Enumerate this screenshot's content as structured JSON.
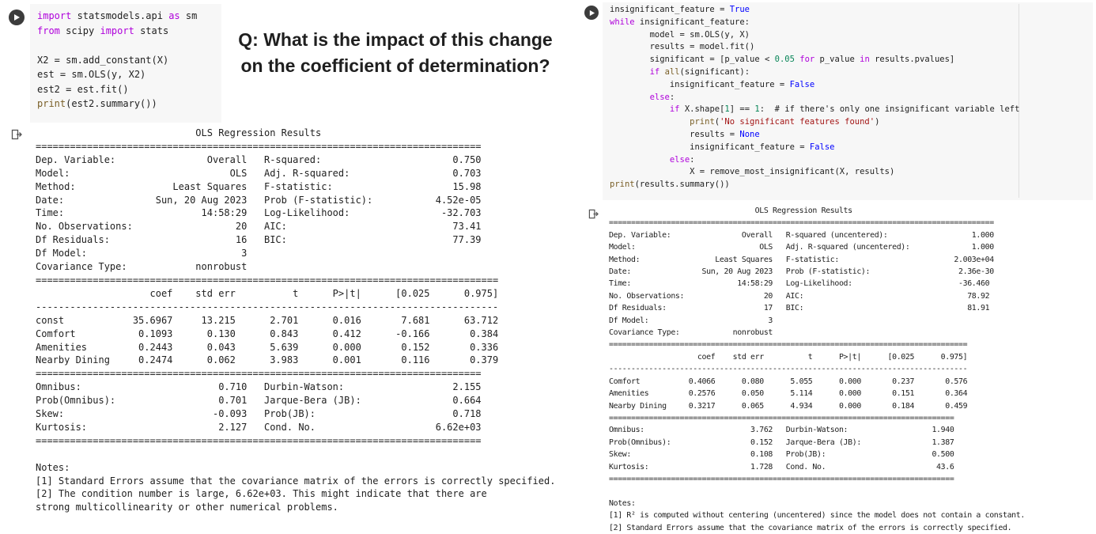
{
  "question": {
    "q": "Q",
    "line1": ": What is the impact of this change",
    "line2": "on the coefficient of determination?"
  },
  "left_cell": {
    "code": [
      {
        "segments": [
          {
            "t": "import",
            "c": "kw"
          },
          {
            "t": " statsmodels.api ",
            "c": ""
          },
          {
            "t": "as",
            "c": "kw"
          },
          {
            "t": " sm",
            "c": ""
          }
        ]
      },
      {
        "segments": [
          {
            "t": "from",
            "c": "kw"
          },
          {
            "t": " scipy ",
            "c": ""
          },
          {
            "t": "import",
            "c": "kw"
          },
          {
            "t": " stats",
            "c": ""
          }
        ]
      },
      {
        "segments": [
          {
            "t": "",
            "c": ""
          }
        ]
      },
      {
        "segments": [
          {
            "t": "X2 = sm.add_constant(X)",
            "c": ""
          }
        ]
      },
      {
        "segments": [
          {
            "t": "est = sm.OLS(y, X2)",
            "c": ""
          }
        ]
      },
      {
        "segments": [
          {
            "t": "est2 = est.fit()",
            "c": ""
          }
        ]
      },
      {
        "segments": [
          {
            "t": "print",
            "c": "fn"
          },
          {
            "t": "(est2.summary())",
            "c": ""
          }
        ]
      }
    ],
    "output": [
      "                            OLS Regression Results",
      "==============================================================================",
      "Dep. Variable:                Overall   R-squared:                       0.750",
      "Model:                            OLS   Adj. R-squared:                  0.703",
      "Method:                 Least Squares   F-statistic:                     15.98",
      "Date:                Sun, 20 Aug 2023   Prob (F-statistic):           4.52e-05",
      "Time:                        14:58:29   Log-Likelihood:                -32.703",
      "No. Observations:                  20   AIC:                             73.41",
      "Df Residuals:                      16   BIC:                             77.39",
      "Df Model:                           3",
      "Covariance Type:            nonrobust",
      "=================================================================================",
      "                    coef    std err          t      P>|t|      [0.025      0.975]",
      "---------------------------------------------------------------------------------",
      "const            35.6967     13.215      2.701      0.016       7.681      63.712",
      "Comfort           0.1093      0.130      0.843      0.412      -0.166       0.384",
      "Amenities         0.2443      0.043      5.639      0.000       0.152       0.336",
      "Nearby Dining     0.2474      0.062      3.983      0.001       0.116       0.379",
      "==============================================================================",
      "Omnibus:                        0.710   Durbin-Watson:                   2.155",
      "Prob(Omnibus):                  0.701   Jarque-Bera (JB):                0.664",
      "Skew:                          -0.093   Prob(JB):                        0.718",
      "Kurtosis:                       2.127   Cond. No.                     6.62e+03",
      "==============================================================================",
      "",
      "Notes:",
      "[1] Standard Errors assume that the covariance matrix of the errors is correctly specified.",
      "[2] The condition number is large, 6.62e+03. This might indicate that there are",
      "strong multicollinearity or other numerical problems."
    ]
  },
  "right_cell": {
    "code": [
      {
        "segments": [
          {
            "t": "insignificant_feature = ",
            "c": ""
          },
          {
            "t": "True",
            "c": "builtin"
          }
        ]
      },
      {
        "segments": [
          {
            "t": "while",
            "c": "kw"
          },
          {
            "t": " insignificant_feature:",
            "c": ""
          }
        ]
      },
      {
        "segments": [
          {
            "t": "        model = sm.OLS(y, X)",
            "c": ""
          }
        ]
      },
      {
        "segments": [
          {
            "t": "        results = model.fit()",
            "c": ""
          }
        ]
      },
      {
        "segments": [
          {
            "t": "        significant = [p_value < ",
            "c": ""
          },
          {
            "t": "0.05",
            "c": "num"
          },
          {
            "t": " ",
            "c": ""
          },
          {
            "t": "for",
            "c": "kw"
          },
          {
            "t": " p_value ",
            "c": ""
          },
          {
            "t": "in",
            "c": "kw"
          },
          {
            "t": " results.pvalues]",
            "c": ""
          }
        ]
      },
      {
        "segments": [
          {
            "t": "        ",
            "c": ""
          },
          {
            "t": "if",
            "c": "kw"
          },
          {
            "t": " ",
            "c": ""
          },
          {
            "t": "all",
            "c": "fn"
          },
          {
            "t": "(significant):",
            "c": ""
          }
        ]
      },
      {
        "segments": [
          {
            "t": "            insignificant_feature = ",
            "c": ""
          },
          {
            "t": "False",
            "c": "builtin"
          }
        ]
      },
      {
        "segments": [
          {
            "t": "        ",
            "c": ""
          },
          {
            "t": "else",
            "c": "kw"
          },
          {
            "t": ":",
            "c": ""
          }
        ]
      },
      {
        "segments": [
          {
            "t": "            ",
            "c": ""
          },
          {
            "t": "if",
            "c": "kw"
          },
          {
            "t": " X.shape[",
            "c": ""
          },
          {
            "t": "1",
            "c": "num"
          },
          {
            "t": "] == ",
            "c": ""
          },
          {
            "t": "1",
            "c": "num"
          },
          {
            "t": ":  # if there's only one insignificant variable left",
            "c": ""
          }
        ]
      },
      {
        "segments": [
          {
            "t": "                ",
            "c": ""
          },
          {
            "t": "print",
            "c": "fn"
          },
          {
            "t": "(",
            "c": ""
          },
          {
            "t": "'No significant features found'",
            "c": "str"
          },
          {
            "t": ")",
            "c": ""
          }
        ]
      },
      {
        "segments": [
          {
            "t": "                results = ",
            "c": ""
          },
          {
            "t": "None",
            "c": "builtin"
          }
        ]
      },
      {
        "segments": [
          {
            "t": "                insignificant_feature = ",
            "c": ""
          },
          {
            "t": "False",
            "c": "builtin"
          }
        ]
      },
      {
        "segments": [
          {
            "t": "            ",
            "c": ""
          },
          {
            "t": "else",
            "c": "kw"
          },
          {
            "t": ":",
            "c": ""
          }
        ]
      },
      {
        "segments": [
          {
            "t": "                X = remove_most_insignificant(X, results)",
            "c": ""
          }
        ]
      },
      {
        "segments": [
          {
            "t": "print",
            "c": "fn"
          },
          {
            "t": "(results.summary())",
            "c": ""
          }
        ]
      }
    ],
    "output": [
      "                                 OLS Regression Results",
      "=======================================================================================",
      "Dep. Variable:                Overall   R-squared (uncentered):                   1.000",
      "Model:                            OLS   Adj. R-squared (uncentered):              1.000",
      "Method:                 Least Squares   F-statistic:                          2.003e+04",
      "Date:                Sun, 20 Aug 2023   Prob (F-statistic):                    2.36e-30",
      "Time:                        14:58:29   Log-Likelihood:                        -36.460",
      "No. Observations:                  20   AIC:                                     78.92",
      "Df Residuals:                      17   BIC:                                     81.91",
      "Df Model:                           3",
      "Covariance Type:            nonrobust",
      "=================================================================================",
      "                    coef    std err          t      P>|t|      [0.025      0.975]",
      "---------------------------------------------------------------------------------",
      "Comfort           0.4066      0.080      5.055      0.000       0.237       0.576",
      "Amenities         0.2576      0.050      5.114      0.000       0.151       0.364",
      "Nearby Dining     0.3217      0.065      4.934      0.000       0.184       0.459",
      "==============================================================================",
      "Omnibus:                        3.762   Durbin-Watson:                   1.940",
      "Prob(Omnibus):                  0.152   Jarque-Bera (JB):                1.387",
      "Skew:                           0.108   Prob(JB):                        0.500",
      "Kurtosis:                       1.728   Cond. No.                         43.6",
      "==============================================================================",
      "",
      "Notes:",
      "[1] R² is computed without centering (uncentered) since the model does not contain a constant.",
      "[2] Standard Errors assume that the covariance matrix of the errors is correctly specified."
    ]
  }
}
